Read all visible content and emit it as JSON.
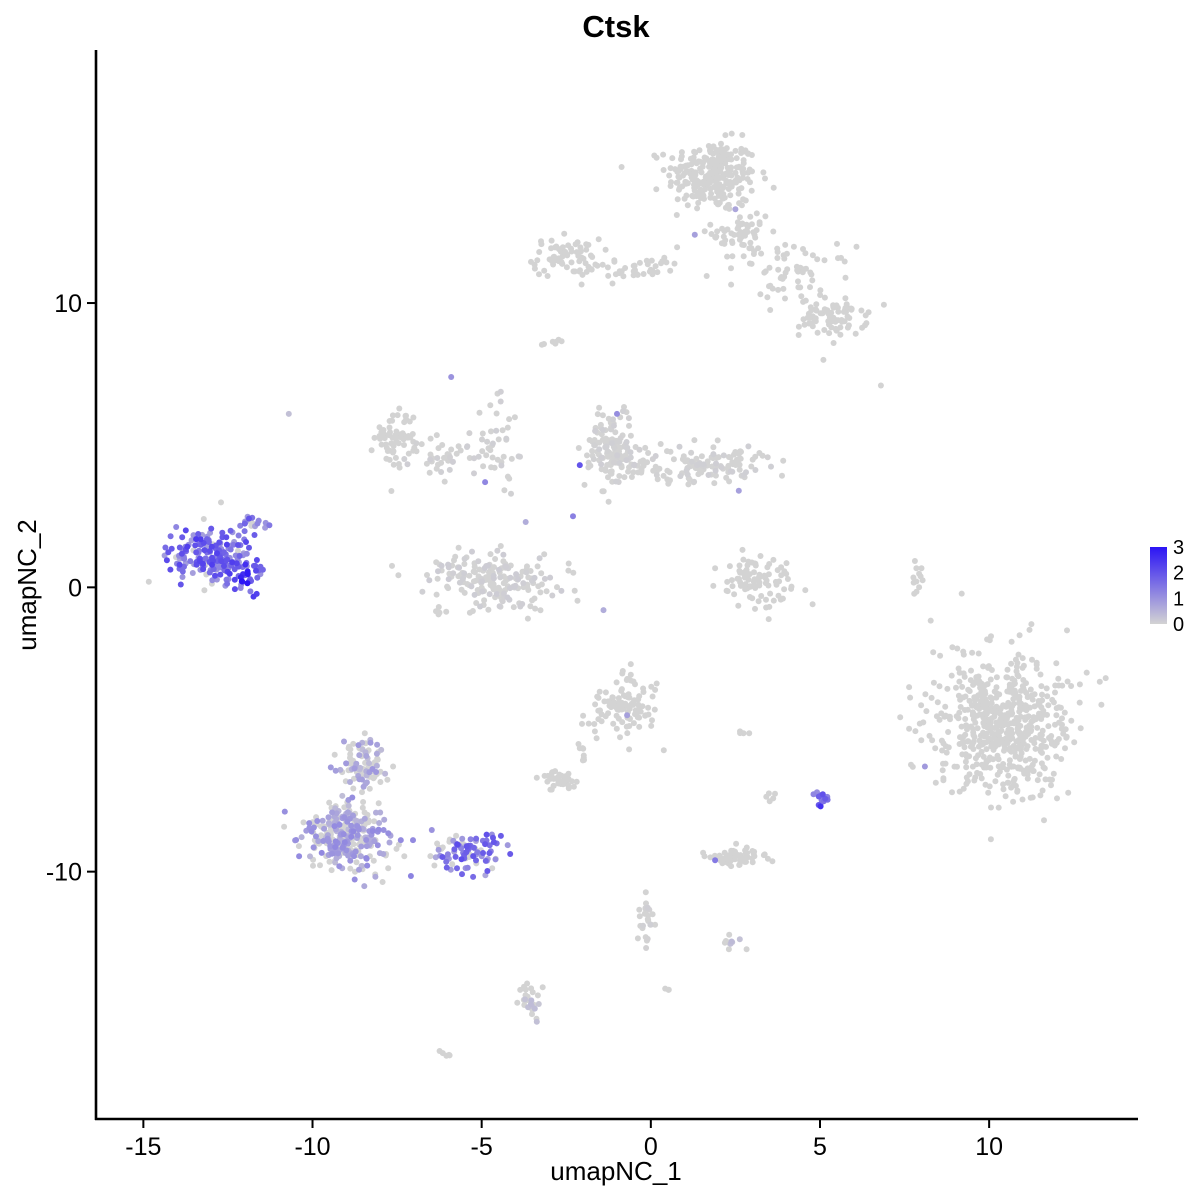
{
  "chart_data": {
    "type": "scatter",
    "title": "Ctsk",
    "xlabel": "umapNC_1",
    "ylabel": "umapNC_2",
    "xlim": [
      -16.4,
      14.4
    ],
    "ylim": [
      -18.7,
      18.9
    ],
    "x_ticks": [
      -15,
      -10,
      -5,
      0,
      5,
      10
    ],
    "x_tick_labels": [
      "-15",
      "-10",
      "-5",
      "0",
      "5",
      "10"
    ],
    "y_ticks": [
      -10,
      0,
      10
    ],
    "y_tick_labels": [
      "-10",
      "0",
      "10"
    ],
    "grid": false,
    "legend": {
      "position": "right",
      "type": "colorbar",
      "labels": [
        "3",
        "2",
        "1",
        "0"
      ],
      "min": 0,
      "max": 3
    },
    "colors": {
      "low": "#d3d3d3",
      "high": "#2b14f5"
    },
    "clusters": [
      {
        "cx": 1.8,
        "cy": 14.5,
        "rx": 1.2,
        "ry": 1.1,
        "weight": 260,
        "expr": 0.0
      },
      {
        "cx": 2.7,
        "cy": 12.5,
        "rx": 0.8,
        "ry": 1.0,
        "weight": 60,
        "expr": 0.0
      },
      {
        "cx": -2.5,
        "cy": 11.6,
        "rx": 0.9,
        "ry": 0.6,
        "weight": 70,
        "expr": 0.0
      },
      {
        "cx": -0.5,
        "cy": 11.2,
        "rx": 1.4,
        "ry": 0.4,
        "weight": 40,
        "expr": 0.0
      },
      {
        "cx": 4.3,
        "cy": 11.0,
        "rx": 1.5,
        "ry": 0.9,
        "weight": 60,
        "expr": 0.0
      },
      {
        "cx": 5.4,
        "cy": 9.5,
        "rx": 0.9,
        "ry": 0.6,
        "weight": 80,
        "expr": 0.0
      },
      {
        "cx": -7.5,
        "cy": 5.3,
        "rx": 0.6,
        "ry": 0.9,
        "weight": 60,
        "expr": 0.0
      },
      {
        "cx": -5.8,
        "cy": 4.6,
        "rx": 1.3,
        "ry": 0.6,
        "weight": 50,
        "expr": 0.02
      },
      {
        "cx": -4.6,
        "cy": 0.2,
        "rx": 1.9,
        "ry": 0.9,
        "weight": 200,
        "expr": 0.03
      },
      {
        "cx": -4.5,
        "cy": 4.8,
        "rx": 0.5,
        "ry": 2.2,
        "weight": 30,
        "expr": 0.02
      },
      {
        "cx": -1.1,
        "cy": 5.0,
        "rx": 0.7,
        "ry": 1.3,
        "weight": 130,
        "expr": 0.02
      },
      {
        "cx": 1.4,
        "cy": 4.3,
        "rx": 1.9,
        "ry": 0.6,
        "weight": 140,
        "expr": 0.02
      },
      {
        "cx": -13.0,
        "cy": 1.1,
        "rx": 1.1,
        "ry": 0.9,
        "weight": 180,
        "expr": 0.62
      },
      {
        "cx": -12.0,
        "cy": 0.5,
        "rx": 0.5,
        "ry": 0.7,
        "weight": 40,
        "expr": 0.8
      },
      {
        "cx": -11.8,
        "cy": 2.2,
        "rx": 0.4,
        "ry": 0.4,
        "weight": 20,
        "expr": 0.55
      },
      {
        "cx": 3.2,
        "cy": 0.2,
        "rx": 1.0,
        "ry": 0.8,
        "weight": 90,
        "expr": 0.0
      },
      {
        "cx": 7.9,
        "cy": 0.2,
        "rx": 0.15,
        "ry": 0.6,
        "weight": 12,
        "expr": 0.0
      },
      {
        "cx": 10.4,
        "cy": -4.8,
        "rx": 1.9,
        "ry": 2.3,
        "weight": 600,
        "expr": 0.0
      },
      {
        "cx": -0.8,
        "cy": -4.2,
        "rx": 0.9,
        "ry": 0.9,
        "weight": 110,
        "expr": 0.0
      },
      {
        "cx": -9.0,
        "cy": -8.8,
        "rx": 1.1,
        "ry": 1.0,
        "weight": 300,
        "expr": 0.3
      },
      {
        "cx": -8.6,
        "cy": -6.3,
        "rx": 0.6,
        "ry": 1.0,
        "weight": 90,
        "expr": 0.25
      },
      {
        "cx": -5.4,
        "cy": -9.3,
        "rx": 1.0,
        "ry": 0.6,
        "weight": 90,
        "expr": 0.55
      },
      {
        "cx": -2.7,
        "cy": -6.8,
        "rx": 0.4,
        "ry": 0.3,
        "weight": 40,
        "expr": 0.0
      },
      {
        "cx": 2.6,
        "cy": -9.5,
        "rx": 0.8,
        "ry": 0.3,
        "weight": 60,
        "expr": 0.0
      },
      {
        "cx": 5.0,
        "cy": -7.4,
        "rx": 0.2,
        "ry": 0.2,
        "weight": 15,
        "expr": 0.7
      },
      {
        "cx": -0.1,
        "cy": -11.6,
        "rx": 0.3,
        "ry": 0.6,
        "weight": 25,
        "expr": 0.02
      },
      {
        "cx": 2.4,
        "cy": -12.5,
        "rx": 0.3,
        "ry": 0.2,
        "weight": 12,
        "expr": 0.1
      },
      {
        "cx": -3.6,
        "cy": -14.6,
        "rx": 0.3,
        "ry": 0.6,
        "weight": 30,
        "expr": 0.1
      },
      {
        "cx": -6.1,
        "cy": -16.4,
        "rx": 0.2,
        "ry": 0.1,
        "weight": 5,
        "expr": 0.0
      },
      {
        "cx": 0.5,
        "cy": -14.1,
        "rx": 0.1,
        "ry": 0.1,
        "weight": 3,
        "expr": 0.0
      },
      {
        "cx": 3.5,
        "cy": -7.5,
        "rx": 0.2,
        "ry": 0.2,
        "weight": 5,
        "expr": 0.0
      },
      {
        "cx": 2.8,
        "cy": -5.1,
        "rx": 0.2,
        "ry": 0.1,
        "weight": 5,
        "expr": 0.0
      },
      {
        "cx": -2.0,
        "cy": -5.8,
        "rx": 0.1,
        "ry": 0.5,
        "weight": 8,
        "expr": 0.0
      },
      {
        "cx": -3.0,
        "cy": 8.6,
        "rx": 0.3,
        "ry": 0.1,
        "weight": 8,
        "expr": 0.0
      }
    ],
    "scattered_points": [
      {
        "x": -10.7,
        "y": 6.1,
        "v": 0.3
      },
      {
        "x": 6.8,
        "y": 7.1,
        "v": 0.0
      },
      {
        "x": 5.1,
        "y": 8.0,
        "v": 0.0
      },
      {
        "x": -2.1,
        "y": 4.3,
        "v": 2.0
      },
      {
        "x": -3.7,
        "y": 2.3,
        "v": 0.6
      },
      {
        "x": -0.7,
        "y": -4.5,
        "v": 0.8
      },
      {
        "x": -1.0,
        "y": 6.1,
        "v": 1.1
      },
      {
        "x": 2.6,
        "y": 3.4,
        "v": 0.8
      },
      {
        "x": 8.1,
        "y": -6.3,
        "v": 0.9
      },
      {
        "x": 1.3,
        "y": 12.4,
        "v": 0.8
      },
      {
        "x": 2.5,
        "y": 13.3,
        "v": 0.7
      },
      {
        "x": -4.9,
        "y": 3.7,
        "v": 1.2
      },
      {
        "x": -2.3,
        "y": 2.5,
        "v": 1.3
      },
      {
        "x": 1.9,
        "y": -9.6,
        "v": 1.4
      },
      {
        "x": -5.9,
        "y": 7.4,
        "v": 1.0
      },
      {
        "x": -1.4,
        "y": -0.8,
        "v": 0.6
      }
    ]
  }
}
